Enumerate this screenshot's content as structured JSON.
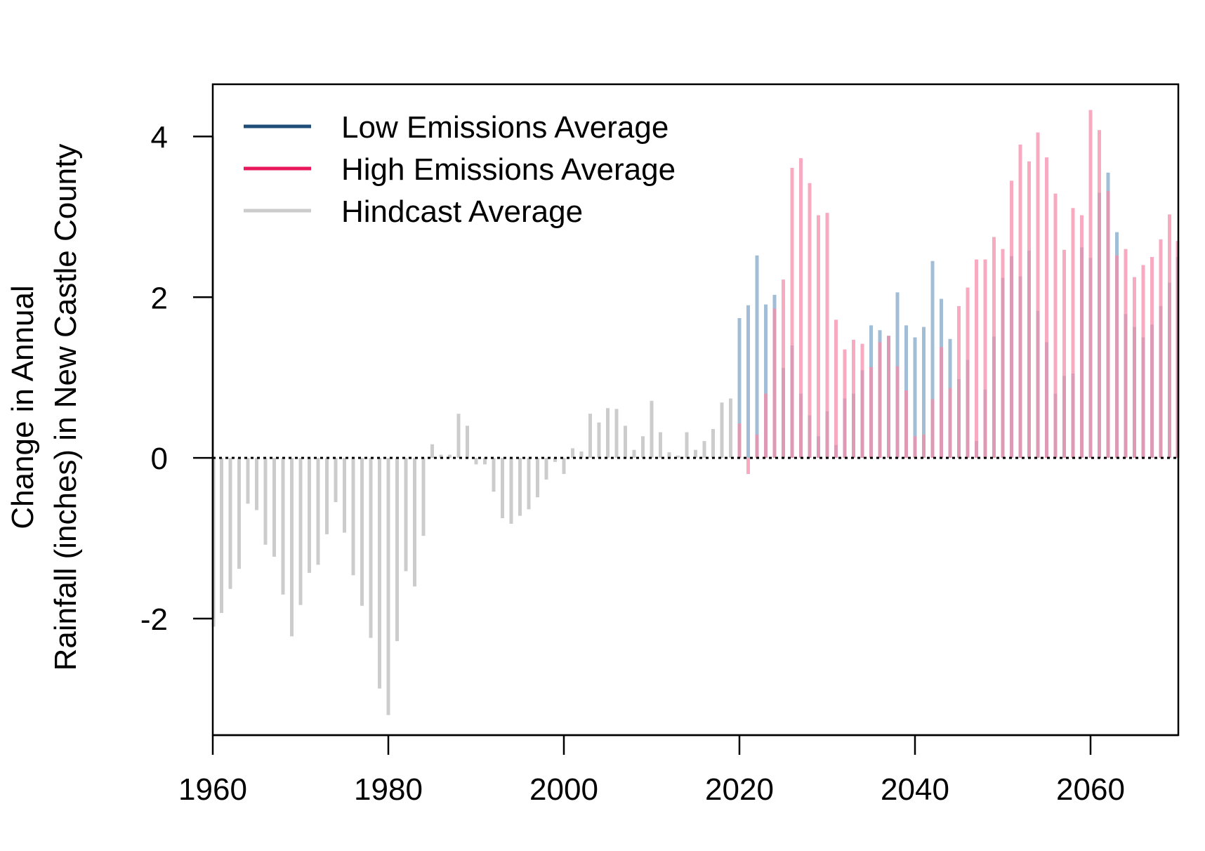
{
  "chart_data": {
    "type": "bar",
    "title": "",
    "xlabel": "",
    "ylabel_lines": [
      "Change in Annual",
      "Rainfall (inches) in New Castle County"
    ],
    "xlim": [
      1960,
      2070
    ],
    "ylim": [
      -3.45,
      4.65
    ],
    "x_ticks": [
      1960,
      1980,
      2000,
      2020,
      2040,
      2060
    ],
    "y_ticks": [
      -2,
      0,
      2,
      4
    ],
    "reference_line": {
      "y": 0,
      "style": "dotted"
    },
    "legend": {
      "position": "top-left",
      "entries": [
        {
          "label": "Low Emissions Average",
          "color": "#1f4e79"
        },
        {
          "label": "High Emissions Average",
          "color": "#e8185a"
        },
        {
          "label": "Hindcast Average",
          "color": "#cccccc"
        }
      ]
    },
    "series": [
      {
        "name": "Hindcast Average",
        "color": "#cccccc",
        "opacity": 1,
        "x": [
          1960,
          1961,
          1962,
          1963,
          1964,
          1965,
          1966,
          1967,
          1968,
          1969,
          1970,
          1971,
          1972,
          1973,
          1974,
          1975,
          1976,
          1977,
          1978,
          1979,
          1980,
          1981,
          1982,
          1983,
          1984,
          1985,
          1986,
          1987,
          1988,
          1989,
          1990,
          1991,
          1992,
          1993,
          1994,
          1995,
          1996,
          1997,
          1998,
          1999,
          2000,
          2001,
          2002,
          2003,
          2004,
          2005,
          2006,
          2007,
          2008,
          2009,
          2010,
          2011,
          2012,
          2013,
          2014,
          2015,
          2016,
          2017,
          2018,
          2019
        ],
        "values": [
          -2.1,
          -1.93,
          -1.63,
          -1.38,
          -0.57,
          -0.65,
          -1.08,
          -1.23,
          -1.7,
          -2.22,
          -1.83,
          -1.43,
          -1.33,
          -0.95,
          -0.55,
          -0.93,
          -1.46,
          -1.84,
          -2.24,
          -2.87,
          -3.2,
          -2.28,
          -1.41,
          -1.6,
          -0.97,
          0.17,
          0.04,
          0.04,
          0.55,
          0.4,
          -0.08,
          -0.08,
          -0.42,
          -0.75,
          -0.82,
          -0.72,
          -0.64,
          -0.49,
          -0.27,
          -0.05,
          -0.2,
          0.12,
          0.08,
          0.55,
          0.44,
          0.62,
          0.61,
          0.4,
          0.1,
          0.27,
          0.71,
          0.32,
          0.07,
          0.03,
          0.32,
          0.1,
          0.21,
          0.36,
          0.69,
          0.74
        ]
      },
      {
        "name": "Low Emissions Average",
        "color": "#7ba3c4",
        "opacity": 0.7,
        "x": [
          2020,
          2021,
          2022,
          2023,
          2024,
          2025,
          2026,
          2027,
          2028,
          2029,
          2030,
          2031,
          2032,
          2033,
          2034,
          2035,
          2036,
          2037,
          2038,
          2039,
          2040,
          2041,
          2042,
          2043,
          2044,
          2045,
          2046,
          2047,
          2048,
          2049,
          2050,
          2051,
          2052,
          2053,
          2054,
          2055,
          2056,
          2057,
          2058,
          2059,
          2060,
          2061,
          2062,
          2063,
          2064,
          2065,
          2066,
          2067,
          2068,
          2069,
          2070
        ],
        "values": [
          1.74,
          1.9,
          2.52,
          1.91,
          2.03,
          1.12,
          1.4,
          0.8,
          0.53,
          0.27,
          0.58,
          0.16,
          0.74,
          0.8,
          1.09,
          1.65,
          1.59,
          1.52,
          2.06,
          1.65,
          1.5,
          1.63,
          2.45,
          1.98,
          1.48,
          0.98,
          1.22,
          0.21,
          0.85,
          1.51,
          2.24,
          2.51,
          2.26,
          2.58,
          1.83,
          1.44,
          0.8,
          1.02,
          1.05,
          2.62,
          2.49,
          3.3,
          3.55,
          2.81,
          1.79,
          1.63,
          1.5,
          1.66,
          1.89,
          2.18,
          2.5
        ]
      },
      {
        "name": "High Emissions Average",
        "color": "#f58aa8",
        "opacity": 0.72,
        "x": [
          2020,
          2021,
          2022,
          2023,
          2024,
          2025,
          2026,
          2027,
          2028,
          2029,
          2030,
          2031,
          2032,
          2033,
          2034,
          2035,
          2036,
          2037,
          2038,
          2039,
          2040,
          2041,
          2042,
          2043,
          2044,
          2045,
          2046,
          2047,
          2048,
          2049,
          2050,
          2051,
          2052,
          2053,
          2054,
          2055,
          2056,
          2057,
          2058,
          2059,
          2060,
          2061,
          2062,
          2063,
          2064,
          2065,
          2066,
          2067,
          2068,
          2069,
          2070
        ],
        "values": [
          0.43,
          -0.2,
          0.29,
          0.8,
          1.86,
          2.22,
          3.61,
          3.73,
          3.42,
          3.02,
          3.05,
          1.72,
          1.35,
          1.47,
          1.42,
          1.13,
          1.44,
          1.52,
          1.14,
          0.84,
          0.27,
          0.29,
          0.73,
          1.38,
          0.87,
          1.89,
          2.12,
          2.47,
          2.47,
          2.75,
          2.6,
          3.45,
          3.9,
          3.69,
          4.05,
          3.74,
          3.29,
          2.59,
          3.11,
          3.02,
          4.33,
          4.08,
          3.32,
          2.52,
          2.6,
          2.25,
          2.4,
          2.5,
          2.72,
          3.03,
          2.7
        ]
      }
    ]
  }
}
